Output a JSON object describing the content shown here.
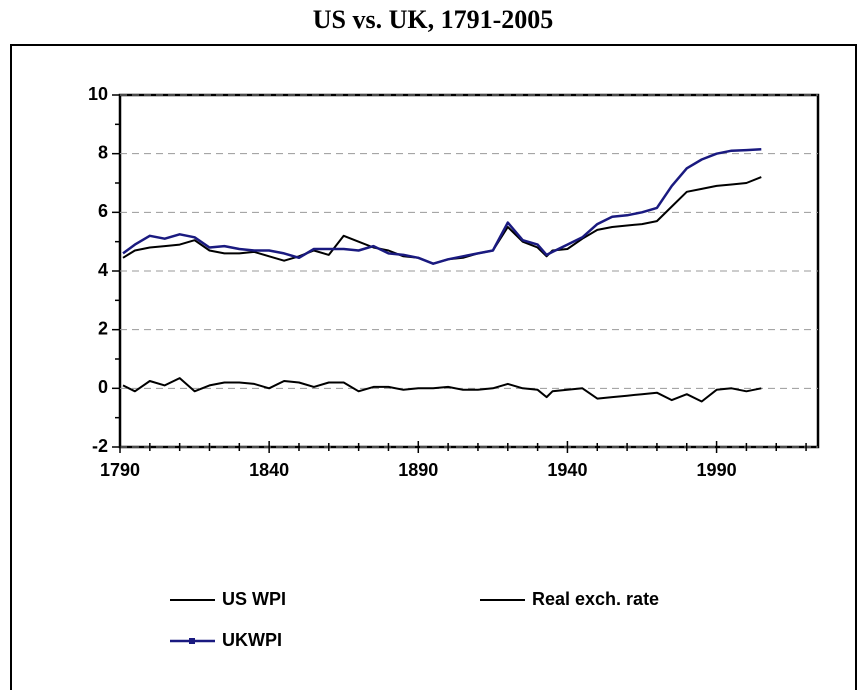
{
  "chart_data": {
    "type": "line",
    "title": "US vs. UK, 1791-2005",
    "x": [
      1791,
      1795,
      1800,
      1805,
      1810,
      1815,
      1820,
      1825,
      1830,
      1835,
      1840,
      1845,
      1850,
      1855,
      1860,
      1865,
      1870,
      1875,
      1880,
      1885,
      1890,
      1895,
      1900,
      1905,
      1910,
      1915,
      1920,
      1925,
      1930,
      1933,
      1935,
      1940,
      1945,
      1950,
      1955,
      1960,
      1965,
      1970,
      1975,
      1980,
      1985,
      1990,
      1995,
      2000,
      2005
    ],
    "series": [
      {
        "name": "US WPI",
        "color": "#000000",
        "values": [
          4.45,
          4.7,
          4.8,
          4.85,
          4.9,
          5.05,
          4.7,
          4.6,
          4.6,
          4.65,
          4.5,
          4.35,
          4.5,
          4.7,
          4.55,
          5.2,
          5.0,
          4.8,
          4.7,
          4.5,
          4.45,
          4.25,
          4.4,
          4.45,
          4.6,
          4.7,
          5.5,
          5.0,
          4.8,
          4.5,
          4.7,
          4.75,
          5.1,
          5.4,
          5.5,
          5.55,
          5.6,
          5.7,
          6.2,
          6.7,
          6.8,
          6.9,
          6.95,
          7.0,
          7.2
        ]
      },
      {
        "name": "Real exch. rate",
        "color": "#000000",
        "values": [
          0.1,
          -0.1,
          0.25,
          0.1,
          0.35,
          -0.1,
          0.1,
          0.2,
          0.2,
          0.15,
          0.0,
          0.25,
          0.2,
          0.05,
          0.2,
          0.2,
          -0.1,
          0.05,
          0.05,
          -0.05,
          0.0,
          0.0,
          0.05,
          -0.05,
          -0.05,
          0.0,
          0.15,
          0.0,
          -0.05,
          -0.3,
          -0.1,
          -0.05,
          0.0,
          -0.35,
          -0.3,
          -0.25,
          -0.2,
          -0.15,
          -0.4,
          -0.2,
          -0.45,
          -0.05,
          0.0,
          -0.1,
          0.0
        ]
      },
      {
        "name": "UKWPI",
        "color": "#1a1a80",
        "values": [
          4.6,
          4.9,
          5.2,
          5.1,
          5.25,
          5.15,
          4.8,
          4.85,
          4.75,
          4.7,
          4.7,
          4.6,
          4.45,
          4.75,
          4.75,
          4.75,
          4.7,
          4.85,
          4.6,
          4.55,
          4.45,
          4.25,
          4.4,
          4.5,
          4.6,
          4.7,
          5.65,
          5.05,
          4.9,
          4.55,
          4.65,
          4.9,
          5.15,
          5.6,
          5.85,
          5.9,
          6.0,
          6.15,
          6.9,
          7.5,
          7.8,
          8.0,
          8.1,
          8.12,
          8.15
        ]
      }
    ],
    "xlim": [
      1790,
      2024
    ],
    "xticks": [
      1790,
      1840,
      1890,
      1940,
      1990
    ],
    "xminorticks": [
      1800,
      1810,
      1820,
      1830,
      1850,
      1860,
      1870,
      1880,
      1900,
      1910,
      1920,
      1930,
      1950,
      1960,
      1970,
      1980,
      2000,
      2010,
      2020
    ],
    "ylim": [
      -2,
      10
    ],
    "yticks": [
      -2,
      0,
      2,
      4,
      6,
      8,
      10
    ],
    "yminorticks": [
      -1,
      1,
      3,
      5,
      7,
      9
    ],
    "grid": true,
    "legend": "bottom"
  }
}
